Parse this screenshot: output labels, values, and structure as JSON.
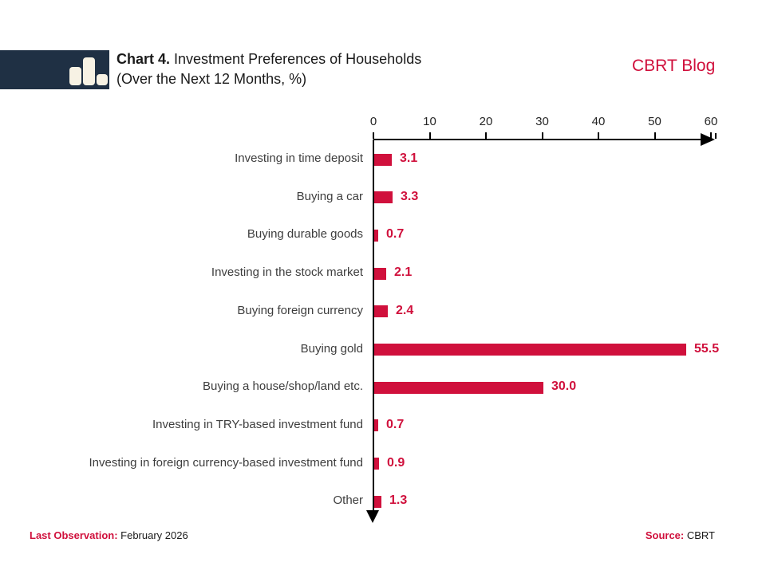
{
  "header": {
    "title_bold": "Chart 4.",
    "title_rest": " Investment Preferences of Households",
    "title_line2": "(Over the Next 12 Months, %)",
    "brand": "CBRT Blog"
  },
  "footer": {
    "last_observation_label": "Last Observation:",
    "last_observation_value": " February 2026",
    "source_label": "Source:",
    "source_value": " CBRT"
  },
  "colors": {
    "accent_crimson": "#d0103c",
    "logo_navy": "#1f3044",
    "logo_cream": "#f7f2e4",
    "axis_black": "#000000",
    "category_text": "#3d3d3d",
    "title_text": "#1a1a1a"
  },
  "icons": {
    "logo": "bar-chart-icon"
  },
  "chart_data": {
    "type": "bar",
    "orientation": "horizontal",
    "title": "Investment Preferences of Households (Over the Next 12 Months, %)",
    "categories": [
      "Investing in time deposit",
      "Buying a car",
      "Buying durable goods",
      "Investing in the stock market",
      "Buying foreign currency",
      "Buying gold",
      "Buying a house/shop/land etc.",
      "Investing in TRY-based investment fund",
      "Investing in foreign currency-based investment fund",
      "Other"
    ],
    "values": [
      3.1,
      3.3,
      0.7,
      2.1,
      2.4,
      55.5,
      30.0,
      0.7,
      0.9,
      1.3
    ],
    "value_labels": [
      "3.1",
      "3.3",
      "0.7",
      "2.1",
      "2.4",
      "55.5",
      "30.0",
      "0.7",
      "0.9",
      "1.3"
    ],
    "bar_color": "#d0103c",
    "axis": {
      "position": "top",
      "min": 0,
      "max": 60,
      "tick_step": 10,
      "tick_labels": [
        "0",
        "10",
        "20",
        "30",
        "40",
        "50",
        "60"
      ]
    },
    "grid": false,
    "legend": false
  }
}
